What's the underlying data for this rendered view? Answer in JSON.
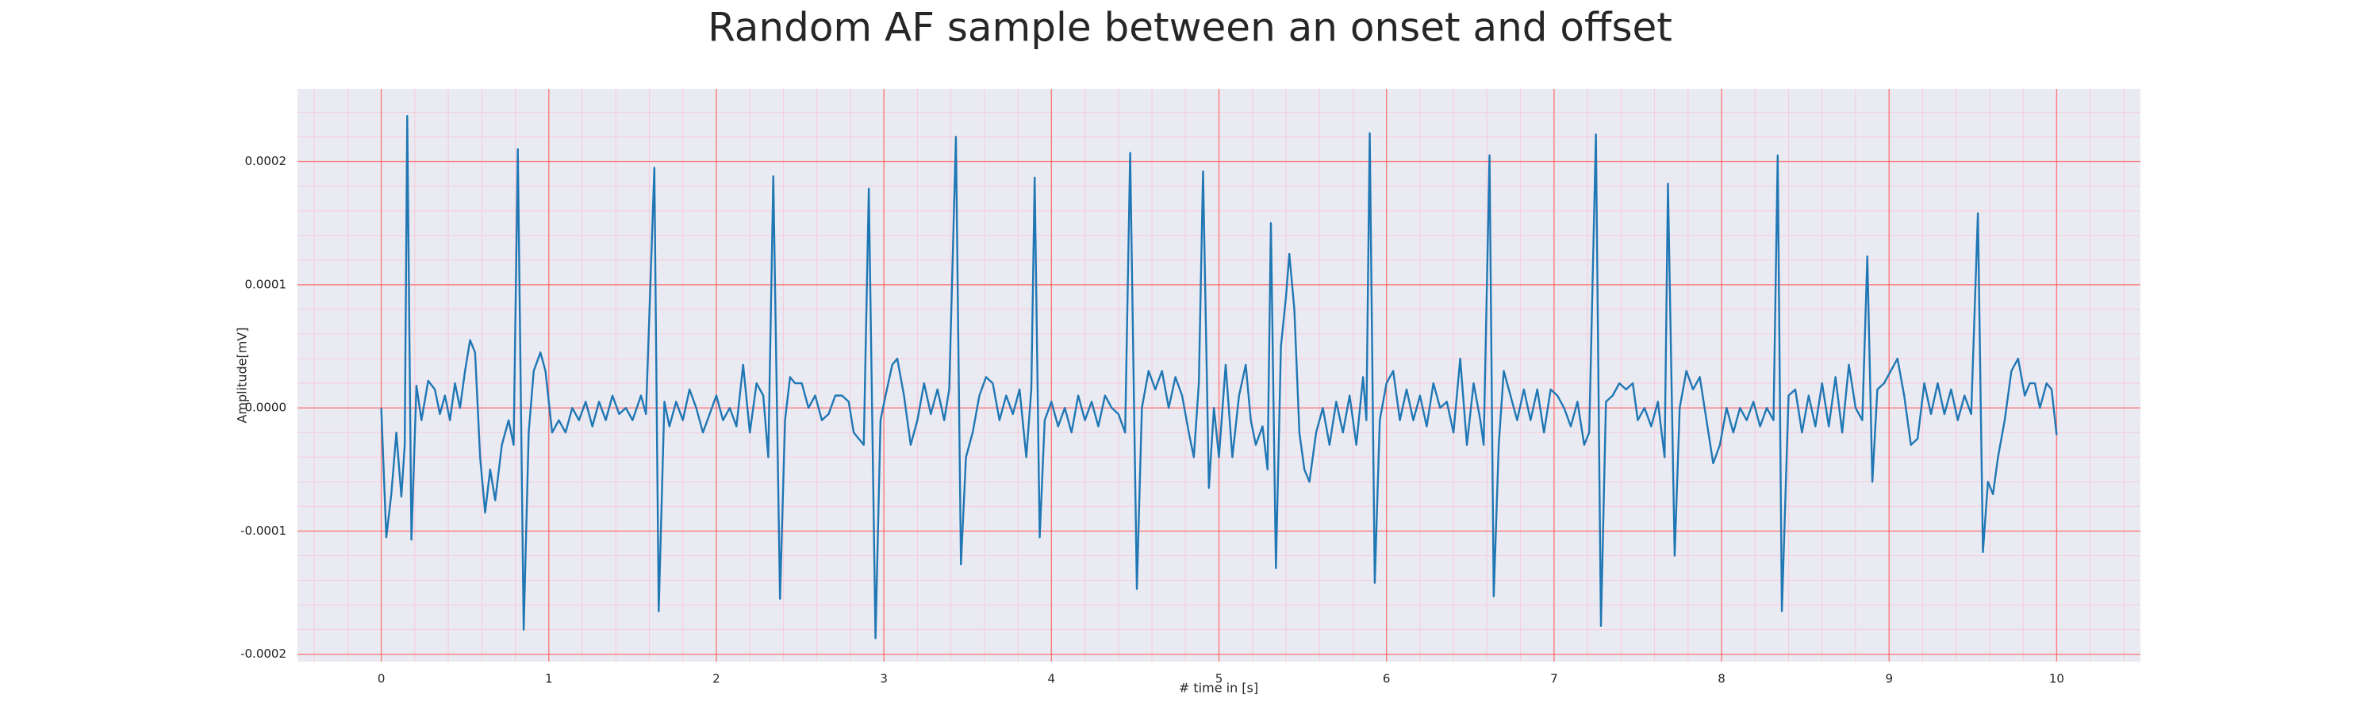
{
  "chart_data": {
    "type": "line",
    "title": "Random AF sample between an onset and offset",
    "xlabel": "# time in [s]",
    "ylabel": "Amplitude[mV]",
    "color": "#1f77b4",
    "grid": true,
    "minor_grid": true,
    "xlim": [
      -0.5,
      10.5
    ],
    "ylim": [
      -0.000206,
      0.000259
    ],
    "xticks": [
      0,
      1,
      2,
      3,
      4,
      5,
      6,
      7,
      8,
      9,
      10
    ],
    "yticks": [
      -0.0002,
      -0.0001,
      {
        "value": 0,
        "label": "0.0000"
      },
      0.0001,
      0.0002
    ],
    "xminorticks": [
      -0.4,
      -0.2,
      0.2,
      0.4,
      0.6,
      0.8,
      1.2,
      1.4,
      1.6,
      1.8,
      2.2,
      2.4,
      2.6,
      2.8,
      3.2,
      3.4,
      3.6,
      3.8,
      4.2,
      4.4,
      4.6,
      4.8,
      5.2,
      5.4,
      5.6,
      5.8,
      6.2,
      6.4,
      6.6,
      6.8,
      7.2,
      7.4,
      7.6,
      7.8,
      8.2,
      8.4,
      8.6,
      8.8,
      9.2,
      9.4,
      9.6,
      9.8,
      10.2,
      10.4
    ],
    "yminorticks": [
      -0.00018,
      -0.00016,
      -0.00014,
      -0.00012,
      -8e-05,
      -6e-05,
      -4e-05,
      -2e-05,
      2e-05,
      4e-05,
      6e-05,
      8e-05,
      0.00012,
      0.00014,
      0.00016,
      0.00018,
      0.00022,
      0.00024
    ],
    "x": [
      0,
      0.03,
      0.06,
      0.09,
      0.12,
      0.14,
      0.155,
      0.18,
      0.21,
      0.24,
      0.28,
      0.32,
      0.35,
      0.38,
      0.41,
      0.44,
      0.47,
      0.5,
      0.53,
      0.56,
      0.59,
      0.62,
      0.65,
      0.68,
      0.72,
      0.76,
      0.79,
      0.815,
      0.85,
      0.88,
      0.91,
      0.95,
      0.98,
      1.02,
      1.06,
      1.1,
      1.14,
      1.18,
      1.22,
      1.26,
      1.3,
      1.34,
      1.38,
      1.42,
      1.46,
      1.5,
      1.55,
      1.58,
      1.63,
      1.656,
      1.69,
      1.72,
      1.76,
      1.8,
      1.84,
      1.88,
      1.92,
      1.96,
      2.0,
      2.04,
      2.08,
      2.12,
      2.16,
      2.2,
      2.24,
      2.28,
      2.31,
      2.34,
      2.38,
      2.41,
      2.44,
      2.47,
      2.51,
      2.55,
      2.59,
      2.63,
      2.67,
      2.71,
      2.75,
      2.79,
      2.82,
      2.88,
      2.91,
      2.95,
      2.98,
      3.01,
      3.05,
      3.08,
      3.12,
      3.16,
      3.2,
      3.24,
      3.28,
      3.32,
      3.36,
      3.39,
      3.43,
      3.46,
      3.49,
      3.53,
      3.57,
      3.61,
      3.65,
      3.69,
      3.73,
      3.77,
      3.81,
      3.85,
      3.88,
      3.9,
      3.93,
      3.96,
      4.0,
      4.04,
      4.08,
      4.12,
      4.16,
      4.2,
      4.24,
      4.28,
      4.32,
      4.36,
      4.4,
      4.44,
      4.47,
      4.51,
      4.54,
      4.58,
      4.62,
      4.66,
      4.7,
      4.74,
      4.78,
      4.82,
      4.85,
      4.88,
      4.905,
      4.94,
      4.97,
      5.0,
      5.04,
      5.08,
      5.12,
      5.16,
      5.19,
      5.22,
      5.26,
      5.29,
      5.31,
      5.34,
      5.37,
      5.4,
      5.42,
      5.45,
      5.48,
      5.51,
      5.54,
      5.58,
      5.62,
      5.66,
      5.7,
      5.74,
      5.78,
      5.82,
      5.86,
      5.88,
      5.9,
      5.93,
      5.96,
      6.0,
      6.04,
      6.08,
      6.12,
      6.16,
      6.2,
      6.24,
      6.28,
      6.32,
      6.36,
      6.4,
      6.44,
      6.48,
      6.52,
      6.56,
      6.58,
      6.615,
      6.64,
      6.67,
      6.7,
      6.74,
      6.78,
      6.82,
      6.86,
      6.9,
      6.94,
      6.98,
      7.02,
      7.06,
      7.1,
      7.14,
      7.18,
      7.21,
      7.25,
      7.28,
      7.31,
      7.35,
      7.39,
      7.43,
      7.47,
      7.5,
      7.54,
      7.58,
      7.62,
      7.66,
      7.68,
      7.72,
      7.75,
      7.79,
      7.83,
      7.87,
      7.91,
      7.95,
      7.99,
      8.03,
      8.07,
      8.11,
      8.15,
      8.19,
      8.23,
      8.27,
      8.31,
      8.335,
      8.36,
      8.4,
      8.44,
      8.48,
      8.52,
      8.56,
      8.6,
      8.64,
      8.68,
      8.72,
      8.76,
      8.8,
      8.84,
      8.87,
      8.9,
      8.93,
      8.97,
      9.01,
      9.05,
      9.09,
      9.13,
      9.17,
      9.21,
      9.25,
      9.29,
      9.33,
      9.37,
      9.41,
      9.45,
      9.49,
      9.53,
      9.56,
      9.59,
      9.62,
      9.65,
      9.69,
      9.73,
      9.77,
      9.81,
      9.84,
      9.87,
      9.9,
      9.94,
      9.97,
      10.0
    ],
    "values": [
      0,
      -0.000105,
      -7e-05,
      -2e-05,
      -7.2e-05,
      -3e-05,
      0.000237,
      -0.000107,
      1.8e-05,
      -1e-05,
      2.2e-05,
      1.5e-05,
      -5e-06,
      1e-05,
      -1e-05,
      2e-05,
      0,
      3e-05,
      5.5e-05,
      4.5e-05,
      -4e-05,
      -8.5e-05,
      -5e-05,
      -7.5e-05,
      -3e-05,
      -1e-05,
      -3e-05,
      0.00021,
      -0.00018,
      -2e-05,
      3e-05,
      4.5e-05,
      3e-05,
      -2e-05,
      -1e-05,
      -2e-05,
      0,
      -1e-05,
      5e-06,
      -1.5e-05,
      5e-06,
      -1e-05,
      1e-05,
      -5e-06,
      0,
      -1e-05,
      1e-05,
      -5e-06,
      0.000195,
      -0.000165,
      5e-06,
      -1.5e-05,
      5e-06,
      -1e-05,
      1.5e-05,
      0,
      -2e-05,
      -5e-06,
      1e-05,
      -1e-05,
      0,
      -1.5e-05,
      3.5e-05,
      -2e-05,
      2e-05,
      1e-05,
      -4e-05,
      0.000188,
      -0.000155,
      -1e-05,
      2.5e-05,
      2e-05,
      2e-05,
      0,
      1e-05,
      -1e-05,
      -5e-06,
      1e-05,
      1e-05,
      5e-06,
      -2e-05,
      -3e-05,
      0.000178,
      -0.000187,
      -1e-05,
      1e-05,
      3.5e-05,
      4e-05,
      1e-05,
      -3e-05,
      -1e-05,
      2e-05,
      -5e-06,
      1.5e-05,
      -1e-05,
      1.5e-05,
      0.00022,
      -0.000127,
      -4e-05,
      -2e-05,
      1e-05,
      2.5e-05,
      2e-05,
      -1e-05,
      1e-05,
      -5e-06,
      1.5e-05,
      -4e-05,
      1.5e-05,
      0.000187,
      -0.000105,
      -1e-05,
      5e-06,
      -1.5e-05,
      0,
      -2e-05,
      1e-05,
      -1e-05,
      5e-06,
      -1.5e-05,
      1e-05,
      0,
      -5e-06,
      -2e-05,
      0.000207,
      -0.000147,
      0,
      3e-05,
      1.5e-05,
      3e-05,
      0,
      2.5e-05,
      1e-05,
      -2e-05,
      -4e-05,
      2e-05,
      0.000192,
      -6.5e-05,
      0,
      -4e-05,
      3.5e-05,
      -4e-05,
      1e-05,
      3.5e-05,
      -1e-05,
      -3e-05,
      -1.5e-05,
      -5e-05,
      0.00015,
      -0.00013,
      5e-05,
      9e-05,
      0.000125,
      8e-05,
      -2e-05,
      -5e-05,
      -6e-05,
      -2e-05,
      0,
      -3e-05,
      5e-06,
      -2e-05,
      1e-05,
      -3e-05,
      2.5e-05,
      -1e-05,
      0.000223,
      -0.000142,
      -1e-05,
      2e-05,
      3e-05,
      -1e-05,
      1.5e-05,
      -1e-05,
      1e-05,
      -1.5e-05,
      2e-05,
      0,
      5e-06,
      -2e-05,
      4e-05,
      -3e-05,
      2e-05,
      -1e-05,
      -3e-05,
      0.000205,
      -0.000153,
      -3e-05,
      3e-05,
      1e-05,
      -1e-05,
      1.5e-05,
      -1e-05,
      1.5e-05,
      -2e-05,
      1.5e-05,
      1e-05,
      0,
      -1.5e-05,
      5e-06,
      -3e-05,
      -2e-05,
      0.000222,
      -0.000177,
      5e-06,
      1e-05,
      2e-05,
      1.5e-05,
      2e-05,
      -1e-05,
      0,
      -1.5e-05,
      5e-06,
      -4e-05,
      0.000182,
      -0.00012,
      0,
      3e-05,
      1.5e-05,
      2.5e-05,
      -1e-05,
      -4.5e-05,
      -3e-05,
      0,
      -2e-05,
      0,
      -1e-05,
      5e-06,
      -1.5e-05,
      0,
      -1e-05,
      0.000205,
      -0.000165,
      1e-05,
      1.5e-05,
      -2e-05,
      1e-05,
      -1.5e-05,
      2e-05,
      -1.5e-05,
      2.5e-05,
      -2e-05,
      3.5e-05,
      0,
      -1e-05,
      0.000123,
      -6e-05,
      1.5e-05,
      2e-05,
      3e-05,
      4e-05,
      1e-05,
      -3e-05,
      -2.5e-05,
      2e-05,
      -5e-06,
      2e-05,
      -5e-06,
      1.5e-05,
      -1e-05,
      1e-05,
      -5e-06,
      0.000158,
      -0.000117,
      -6e-05,
      -7e-05,
      -4e-05,
      -1e-05,
      3e-05,
      4e-05,
      1e-05,
      2e-05,
      2e-05,
      0,
      2e-05,
      1.5e-05,
      -2.2e-05
    ]
  }
}
